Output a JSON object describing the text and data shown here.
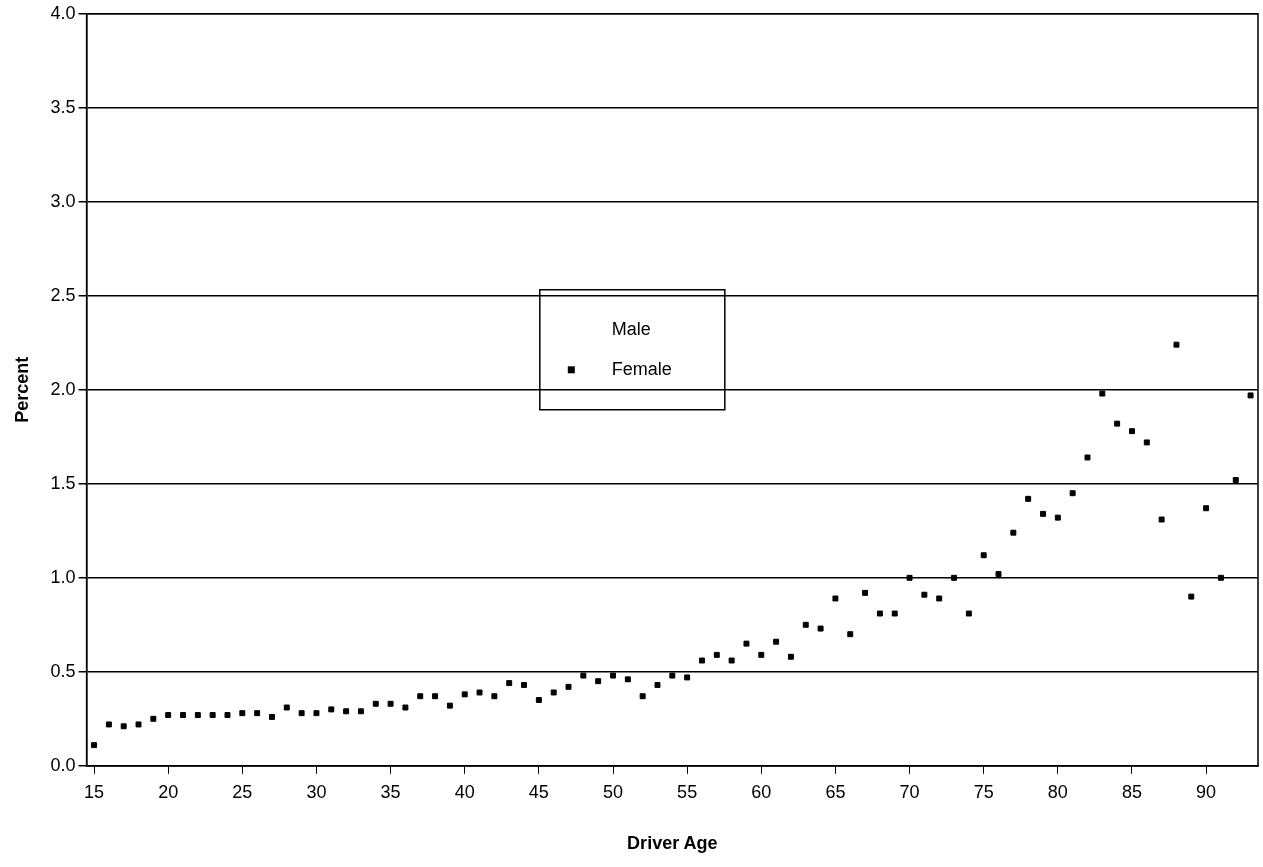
{
  "chart_data": {
    "type": "scatter",
    "xlabel": "Driver Age",
    "ylabel": "Percent",
    "x": [
      15,
      16,
      17,
      18,
      19,
      20,
      21,
      22,
      23,
      24,
      25,
      26,
      27,
      28,
      29,
      30,
      31,
      32,
      33,
      34,
      35,
      36,
      37,
      38,
      39,
      40,
      41,
      42,
      43,
      44,
      45,
      46,
      47,
      48,
      49,
      50,
      51,
      52,
      53,
      54,
      55,
      56,
      57,
      58,
      59,
      60,
      61,
      62,
      63,
      64,
      65,
      66,
      67,
      68,
      69,
      70,
      71,
      72,
      73,
      74,
      75,
      76,
      77,
      78,
      79,
      80,
      81,
      82,
      83,
      84,
      85,
      86,
      87,
      88,
      89,
      90,
      91,
      92,
      93
    ],
    "series": [
      {
        "name": "Male",
        "marker": "none",
        "values": [
          null,
          null,
          null,
          null,
          null,
          null,
          null,
          null,
          null,
          null,
          null,
          null,
          null,
          null,
          null,
          null,
          null,
          null,
          null,
          null,
          null,
          null,
          null,
          null,
          null,
          null,
          null,
          null,
          null,
          null,
          null,
          null,
          null,
          null,
          null,
          null,
          null,
          null,
          null,
          null,
          null,
          null,
          null,
          null,
          null,
          null,
          null,
          null,
          null,
          null,
          null,
          null,
          null,
          null,
          null,
          null,
          null,
          null,
          null,
          null,
          null,
          null,
          null,
          null,
          null,
          null,
          null,
          null,
          null,
          null,
          null,
          null,
          null,
          null,
          null,
          null,
          null,
          null,
          null
        ]
      },
      {
        "name": "Female",
        "color": "#000000",
        "marker": "square",
        "values": [
          0.11,
          0.22,
          0.21,
          0.22,
          0.25,
          0.27,
          0.27,
          0.27,
          0.27,
          0.27,
          0.28,
          0.28,
          0.26,
          0.31,
          0.28,
          0.28,
          0.3,
          0.29,
          0.29,
          0.33,
          0.33,
          0.31,
          0.37,
          0.37,
          0.32,
          0.38,
          0.39,
          0.37,
          0.44,
          0.43,
          0.35,
          0.39,
          0.42,
          0.48,
          0.45,
          0.48,
          0.46,
          0.37,
          0.43,
          0.48,
          0.47,
          0.56,
          0.59,
          0.56,
          0.65,
          0.59,
          0.66,
          0.58,
          0.75,
          0.73,
          0.89,
          0.7,
          0.92,
          0.81,
          0.81,
          1.0,
          0.91,
          0.89,
          1.0,
          0.81,
          1.12,
          1.02,
          1.24,
          1.42,
          1.34,
          1.32,
          1.45,
          1.64,
          1.98,
          1.82,
          1.78,
          1.72,
          1.31,
          2.24,
          0.9,
          1.37,
          1.0,
          1.52,
          1.97
        ]
      }
    ],
    "xlim": [
      14.5,
      93.5
    ],
    "xticks": [
      15,
      20,
      25,
      30,
      35,
      40,
      45,
      50,
      55,
      60,
      65,
      70,
      75,
      80,
      85,
      90
    ],
    "ylim": [
      0,
      4
    ],
    "yticks": [
      {
        "value": 0,
        "label": "0.0"
      },
      {
        "value": 0.5,
        "label": "0.5"
      },
      {
        "value": 1,
        "label": "1.0"
      },
      {
        "value": 1.5,
        "label": "1.5"
      },
      {
        "value": 2,
        "label": "2.0"
      },
      {
        "value": 2.5,
        "label": "2.5"
      },
      {
        "value": 3,
        "label": "3.0"
      },
      {
        "value": 3.5,
        "label": "3.5"
      },
      {
        "value": 4,
        "label": "4.0"
      }
    ],
    "grid": "y",
    "legend": "center"
  }
}
